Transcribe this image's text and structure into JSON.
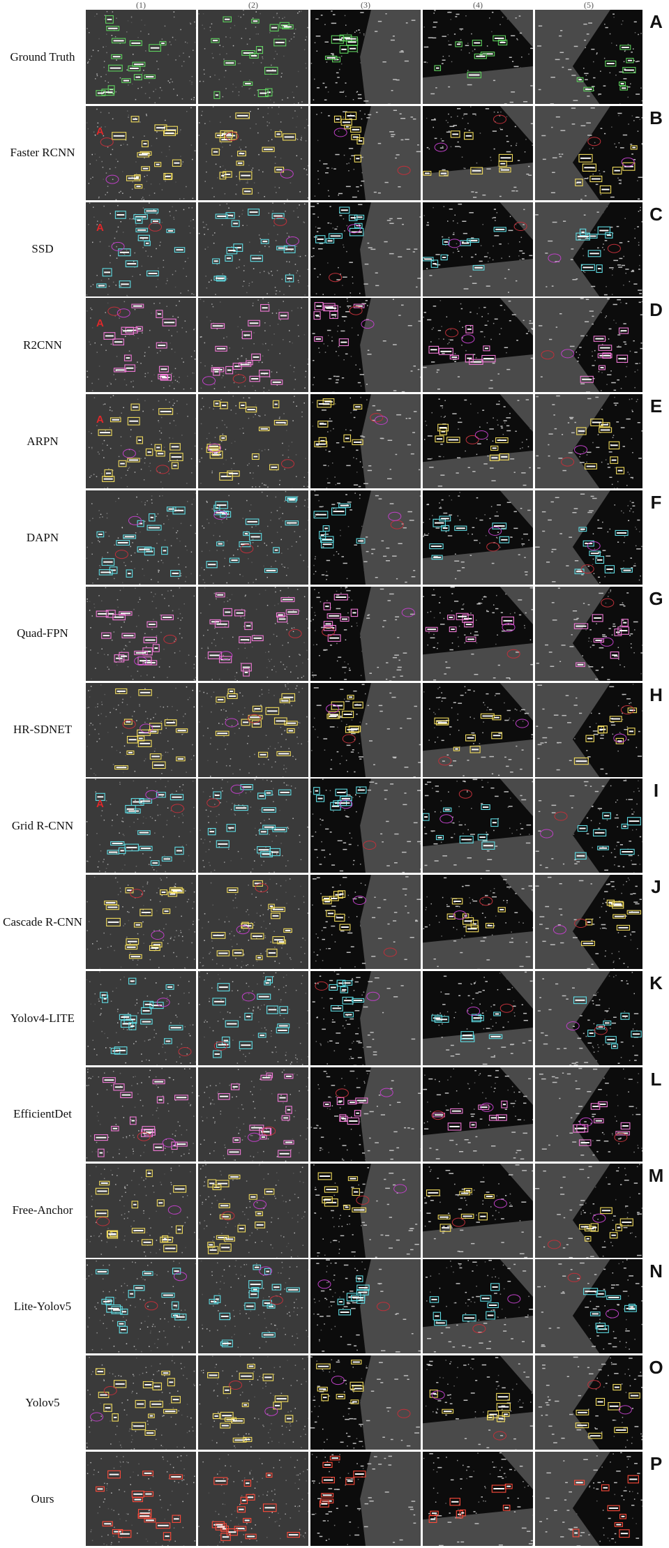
{
  "columns": [
    "(1)",
    "(2)",
    "(3)",
    "(4)",
    "(5)"
  ],
  "rows": [
    {
      "method": "Ground Truth",
      "letter": "A",
      "box_color": "#5fd35f"
    },
    {
      "method": "Faster RCNN",
      "letter": "B",
      "box_color": "#f2dc5d"
    },
    {
      "method": "SSD",
      "letter": "C",
      "box_color": "#5fdde5"
    },
    {
      "method": "R2CNN",
      "letter": "D",
      "box_color": "#f27ad8"
    },
    {
      "method": "ARPN",
      "letter": "E",
      "box_color": "#f2dc5d"
    },
    {
      "method": "DAPN",
      "letter": "F",
      "box_color": "#5fdde5"
    },
    {
      "method": "Quad-FPN",
      "letter": "G",
      "box_color": "#f27ad8"
    },
    {
      "method": "HR-SDNET",
      "letter": "H",
      "box_color": "#f2dc5d"
    },
    {
      "method": "Grid R-CNN",
      "letter": "I",
      "box_color": "#5fdde5"
    },
    {
      "method": "Cascade R-CNN",
      "letter": "J",
      "box_color": "#f2dc5d"
    },
    {
      "method": "Yolov4-LITE",
      "letter": "K",
      "box_color": "#5fdde5"
    },
    {
      "method": "EfficientDet",
      "letter": "L",
      "box_color": "#f27ad8"
    },
    {
      "method": "Free-Anchor",
      "letter": "M",
      "box_color": "#f2dc5d"
    },
    {
      "method": "Lite-Yolov5",
      "letter": "N",
      "box_color": "#5fdde5"
    },
    {
      "method": "Yolov5",
      "letter": "O",
      "box_color": "#f2dc5d"
    },
    {
      "method": "Ours",
      "letter": "P",
      "box_color": "#ff4a3a"
    }
  ],
  "annotation_marker": "A",
  "miss_color": "#c0303a",
  "false_alarm_color": "#c040c8"
}
